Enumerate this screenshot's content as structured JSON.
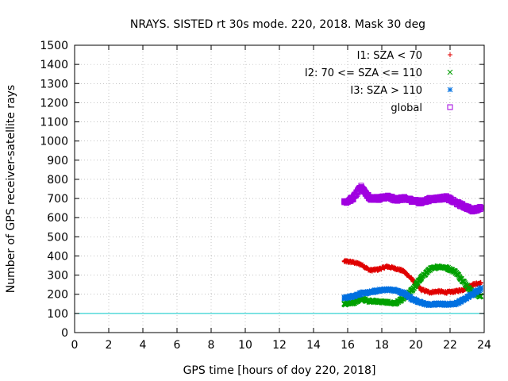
{
  "chart_data": {
    "type": "scatter",
    "title": "NRAYS. SISTED rt 30s mode. 220, 2018. Mask 30 deg",
    "xlabel": "GPS time [hours of doy 220, 2018]",
    "ylabel": "Number of GPS receiver-satellite rays",
    "xlim": [
      0,
      24
    ],
    "ylim": [
      0,
      1500
    ],
    "xticks": [
      "0",
      "2",
      "4",
      "6",
      "8",
      "10",
      "12",
      "14",
      "16",
      "18",
      "20",
      "22",
      "24"
    ],
    "yticks": [
      "0",
      "100",
      "200",
      "300",
      "400",
      "500",
      "600",
      "700",
      "800",
      "900",
      "1000",
      "1100",
      "1200",
      "1300",
      "1400",
      "1500"
    ],
    "grid": true,
    "legend_position": "top-right",
    "reference_line": {
      "y": 100,
      "color": "#00c8c8"
    },
    "series": [
      {
        "name": "I1: SZA < 70",
        "marker": "plus",
        "color": "#e00000",
        "x": [
          15.8,
          16.3,
          16.8,
          17.3,
          17.8,
          18.3,
          18.8,
          19.3,
          19.8,
          20.3,
          20.8,
          21.3,
          21.8,
          22.3,
          22.8,
          23.3,
          23.8
        ],
        "y": [
          372,
          368,
          355,
          325,
          330,
          345,
          335,
          320,
          275,
          225,
          210,
          215,
          210,
          215,
          225,
          250,
          258
        ]
      },
      {
        "name": "I2: 70 <= SZA <= 110",
        "marker": "cross",
        "color": "#00a000",
        "x": [
          15.8,
          16.3,
          16.8,
          17.3,
          17.8,
          18.3,
          18.8,
          19.3,
          19.8,
          20.3,
          20.8,
          21.3,
          21.8,
          22.3,
          22.8,
          23.3,
          23.8
        ],
        "y": [
          148,
          155,
          175,
          165,
          162,
          158,
          152,
          180,
          225,
          285,
          330,
          345,
          338,
          318,
          265,
          210,
          188
        ]
      },
      {
        "name": "I3: SZA > 110",
        "marker": "star",
        "color": "#0070e0",
        "x": [
          15.8,
          16.3,
          16.8,
          17.3,
          17.8,
          18.3,
          18.8,
          19.3,
          19.8,
          20.3,
          20.8,
          21.3,
          21.8,
          22.3,
          22.8,
          23.3,
          23.8
        ],
        "y": [
          180,
          190,
          205,
          210,
          220,
          225,
          220,
          205,
          175,
          155,
          145,
          150,
          148,
          150,
          172,
          200,
          230
        ]
      },
      {
        "name": "global",
        "marker": "square",
        "color": "#a000e0",
        "x": [
          15.8,
          16.3,
          16.8,
          17.3,
          17.8,
          18.3,
          18.8,
          19.3,
          19.8,
          20.3,
          20.8,
          21.3,
          21.8,
          22.3,
          22.8,
          23.3,
          23.8
        ],
        "y": [
          680,
          700,
          760,
          700,
          700,
          710,
          695,
          700,
          690,
          680,
          695,
          700,
          705,
          680,
          660,
          640,
          650
        ]
      }
    ]
  }
}
